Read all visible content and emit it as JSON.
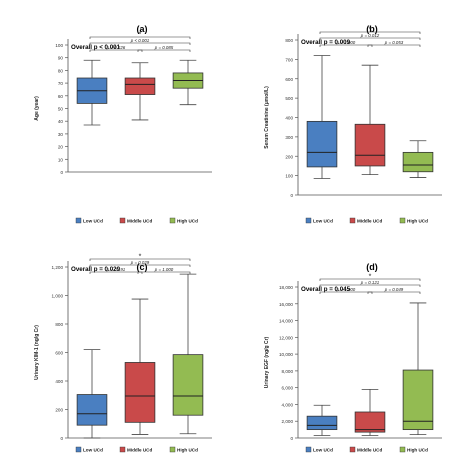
{
  "chart_data": [
    {
      "type": "box",
      "panel_label": "(a)",
      "overall": "Overall p < 0.001",
      "ylabel": "Age (year)",
      "ylim": [
        0,
        100
      ],
      "yticks": [
        "0",
        "10",
        "20",
        "30",
        "40",
        "50",
        "60",
        "70",
        "80",
        "90",
        "100"
      ],
      "categories": [
        "Low UCd",
        "Middle UCd",
        "High UCd"
      ],
      "colors": [
        "#4a7fc1",
        "#c94a4a",
        "#93bb52"
      ],
      "boxes": [
        {
          "min": 37,
          "q1": 54,
          "median": 64,
          "q3": 74,
          "max": 88
        },
        {
          "min": 41,
          "q1": 61,
          "median": 69,
          "q3": 74,
          "max": 86
        },
        {
          "min": 53,
          "q1": 66,
          "median": 72,
          "q3": 78,
          "max": 88
        }
      ],
      "brackets": [
        {
          "from": 0,
          "to": 2,
          "level": 2,
          "text": "*"
        },
        {
          "from": 0,
          "to": 2,
          "level": 1,
          "text": "p < 0.001"
        },
        {
          "from": 0,
          "to": 1,
          "level": 0,
          "text": "p = 0.226"
        },
        {
          "from": 1,
          "to": 2,
          "level": 0,
          "text": "p = 0.085"
        }
      ]
    },
    {
      "type": "box",
      "panel_label": "(b)",
      "overall": "Overall p = 0.009",
      "ylabel": "Serum Creatinine (μmol/L)",
      "ylim": [
        0,
        800
      ],
      "yticks": [
        "0",
        "100",
        "200",
        "300",
        "400",
        "500",
        "600",
        "700",
        "800"
      ],
      "categories": [
        "Low UCd",
        "Middle UCd",
        "High UCd"
      ],
      "colors": [
        "#4a7fc1",
        "#c94a4a",
        "#93bb52"
      ],
      "boxes": [
        {
          "min": 85,
          "q1": 145,
          "median": 220,
          "q3": 380,
          "max": 720
        },
        {
          "min": 105,
          "q1": 150,
          "median": 205,
          "q3": 365,
          "max": 670
        },
        {
          "min": 90,
          "q1": 120,
          "median": 155,
          "q3": 220,
          "max": 280
        }
      ],
      "brackets": [
        {
          "from": 0,
          "to": 2,
          "level": 2,
          "text": "*"
        },
        {
          "from": 0,
          "to": 2,
          "level": 1,
          "text": "p = 0.012"
        },
        {
          "from": 0,
          "to": 1,
          "level": 0,
          "text": "p = 1.000"
        },
        {
          "from": 1,
          "to": 2,
          "level": 0,
          "text": "p = 0.053"
        }
      ]
    },
    {
      "type": "box",
      "panel_label": "(c)",
      "overall": "Overall p = 0.029",
      "ylabel": "Urinary KIM-1 (ng/g Cr)",
      "ylim": [
        0,
        1200
      ],
      "yticks": [
        "0",
        "200",
        "400",
        "600",
        "800",
        "1,000",
        "1,200"
      ],
      "categories": [
        "Low UCd",
        "Middle UCd",
        "High UCd"
      ],
      "colors": [
        "#4a7fc1",
        "#c94a4a",
        "#93bb52"
      ],
      "boxes": [
        {
          "min": 0,
          "q1": 90,
          "median": 170,
          "q3": 305,
          "max": 620
        },
        {
          "min": 25,
          "q1": 110,
          "median": 295,
          "q3": 530,
          "max": 975
        },
        {
          "min": 30,
          "q1": 160,
          "median": 295,
          "q3": 585,
          "max": 1150
        }
      ],
      "brackets": [
        {
          "from": 0,
          "to": 2,
          "level": 2,
          "text": "*"
        },
        {
          "from": 0,
          "to": 2,
          "level": 1,
          "text": "p = 0.029"
        },
        {
          "from": 0,
          "to": 1,
          "level": 0,
          "text": "p = 0.191"
        },
        {
          "from": 1,
          "to": 2,
          "level": 0,
          "text": "p = 1.000"
        }
      ]
    },
    {
      "type": "box",
      "panel_label": "(d)",
      "overall": "Overall p = 0.045",
      "ylabel": "Urinary EGF (ng/g Cr)",
      "ylim": [
        0,
        18000
      ],
      "yticks": [
        "0",
        "2,000",
        "4,000",
        "6,000",
        "8,000",
        "10,000",
        "12,000",
        "14,000",
        "16,000",
        "18,000"
      ],
      "categories": [
        "Low UCd",
        "Middle UCd",
        "High UCd"
      ],
      "colors": [
        "#4a7fc1",
        "#c94a4a",
        "#93bb52"
      ],
      "boxes": [
        {
          "min": 300,
          "q1": 1000,
          "median": 1500,
          "q3": 2600,
          "max": 3900
        },
        {
          "min": 300,
          "q1": 700,
          "median": 1000,
          "q3": 3100,
          "max": 5800
        },
        {
          "min": 400,
          "q1": 1000,
          "median": 2000,
          "q3": 8100,
          "max": 16100
        }
      ],
      "brackets": [
        {
          "from": 0,
          "to": 2,
          "level": 2,
          "text": "*"
        },
        {
          "from": 0,
          "to": 2,
          "level": 1,
          "text": "p = 0.121"
        },
        {
          "from": 0,
          "to": 1,
          "level": 0,
          "text": "p = 1.000"
        },
        {
          "from": 1,
          "to": 2,
          "level": 0,
          "text": "p = 0.049"
        }
      ]
    }
  ]
}
